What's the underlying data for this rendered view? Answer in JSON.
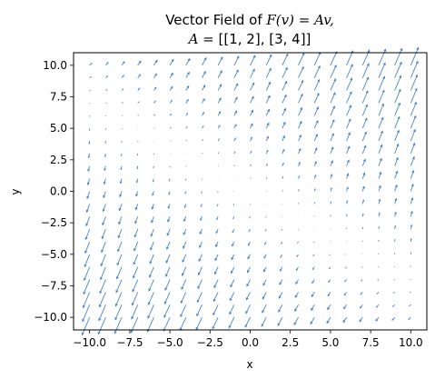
{
  "chart_data": {
    "type": "quiver",
    "title": {
      "line1_prefix": "Vector Field of ",
      "line1_math": "F(v) = Av,",
      "line2_math": "A = ",
      "line2_text": "[[1, 2], [3, 4]]"
    },
    "matrix": [
      [
        1,
        2
      ],
      [
        3,
        4
      ]
    ],
    "xlabel": "x",
    "ylabel": "y",
    "xlim": [
      -11,
      11
    ],
    "ylim": [
      -11,
      11
    ],
    "grid": {
      "x": [
        -10,
        -9,
        -8,
        -7,
        -6,
        -5,
        -4,
        -3,
        -2,
        -1,
        0,
        1,
        2,
        3,
        4,
        5,
        6,
        7,
        8,
        9,
        10
      ],
      "y": [
        -10,
        -9,
        -8,
        -7,
        -6,
        -5,
        -4,
        -3,
        -2,
        -1,
        0,
        1,
        2,
        3,
        4,
        5,
        6,
        7,
        8,
        9,
        10
      ]
    },
    "xticks": [
      "−10.0",
      "−7.5",
      "−5.0",
      "−2.5",
      "0.0",
      "2.5",
      "5.0",
      "7.5",
      "10.0"
    ],
    "yticks": [
      "−10.0",
      "−7.5",
      "−5.0",
      "−2.5",
      "0.0",
      "2.5",
      "5.0",
      "7.5",
      "10.0"
    ],
    "xtick_values": [
      -10,
      -7.5,
      -5,
      -2.5,
      0,
      2.5,
      5,
      7.5,
      10
    ],
    "ytick_values": [
      -10,
      -7.5,
      -5,
      -2.5,
      0,
      2.5,
      5,
      7.5,
      10
    ],
    "arrow_color": "#4a86c5",
    "grid_lines": false,
    "legend": "none"
  }
}
